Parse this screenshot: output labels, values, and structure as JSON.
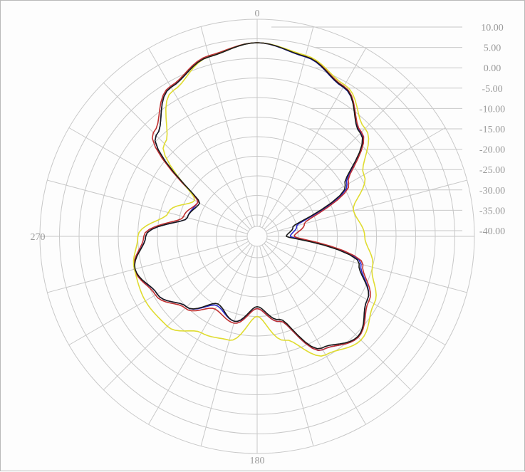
{
  "chart_data": {
    "type": "polar-line",
    "title": "",
    "angle_labels": [
      "0",
      "270",
      "180"
    ],
    "angle_label_degrees": [
      0,
      270,
      180
    ],
    "radial_ticks": [
      "10.00",
      "5.00",
      "0.00",
      "-5.00",
      "-10.00",
      "-15.00",
      "-20.00",
      "-25.00",
      "-30.00",
      "-35.00",
      "-40.00"
    ],
    "radial_range_db": [
      -40,
      10
    ],
    "angular_spokes_every_deg": 15,
    "grid": true,
    "legend": "none",
    "series": [
      {
        "color": "#2a2ad0",
        "points": [
          [
            0,
            4.0
          ],
          [
            15,
            2.0
          ],
          [
            30,
            -1.5
          ],
          [
            45,
            -8.0
          ],
          [
            60,
            -19.0
          ],
          [
            75,
            -35.0
          ],
          [
            90,
            -37.0
          ],
          [
            105,
            -18.0
          ],
          [
            120,
            -13.0
          ],
          [
            135,
            -9.0
          ],
          [
            150,
            -12.0
          ],
          [
            165,
            -23.0
          ],
          [
            180,
            -27.0
          ],
          [
            195,
            -23.0
          ],
          [
            210,
            -25.0
          ],
          [
            225,
            -20.0
          ],
          [
            240,
            -16.0
          ],
          [
            255,
            -13.0
          ],
          [
            270,
            -17.0
          ],
          [
            285,
            -27.0
          ],
          [
            300,
            -28.0
          ],
          [
            315,
            -9.0
          ],
          [
            330,
            -1.5
          ],
          [
            345,
            2.0
          ],
          [
            360,
            4.0
          ]
        ]
      },
      {
        "color": "#c03030",
        "points": [
          [
            0,
            4.0
          ],
          [
            15,
            2.2
          ],
          [
            30,
            -1.2
          ],
          [
            45,
            -7.8
          ],
          [
            60,
            -18.5
          ],
          [
            75,
            -33.0
          ],
          [
            90,
            -36.0
          ],
          [
            105,
            -17.5
          ],
          [
            120,
            -12.5
          ],
          [
            135,
            -9.0
          ],
          [
            150,
            -12.0
          ],
          [
            165,
            -23.0
          ],
          [
            180,
            -27.0
          ],
          [
            195,
            -22.5
          ],
          [
            210,
            -24.0
          ],
          [
            225,
            -19.5
          ],
          [
            240,
            -15.5
          ],
          [
            255,
            -13.0
          ],
          [
            270,
            -16.5
          ],
          [
            285,
            -26.0
          ],
          [
            300,
            -28.0
          ],
          [
            315,
            -8.0
          ],
          [
            330,
            -1.2
          ],
          [
            345,
            2.3
          ],
          [
            360,
            4.0
          ]
        ]
      },
      {
        "color": "#e0dc30",
        "points": [
          [
            0,
            4.0
          ],
          [
            15,
            2.4
          ],
          [
            30,
            -0.8
          ],
          [
            45,
            -6.5
          ],
          [
            60,
            -14.0
          ],
          [
            75,
            -20.0
          ],
          [
            90,
            -18.0
          ],
          [
            105,
            -15.0
          ],
          [
            120,
            -11.0
          ],
          [
            135,
            -8.0
          ],
          [
            150,
            -10.5
          ],
          [
            165,
            -18.0
          ],
          [
            180,
            -25.0
          ],
          [
            195,
            -18.0
          ],
          [
            210,
            -17.0
          ],
          [
            225,
            -13.0
          ],
          [
            240,
            -12.5
          ],
          [
            255,
            -13.0
          ],
          [
            270,
            -15.0
          ],
          [
            285,
            -22.0
          ],
          [
            300,
            -27.0
          ],
          [
            315,
            -12.0
          ],
          [
            330,
            -2.5
          ],
          [
            345,
            2.0
          ],
          [
            360,
            4.0
          ]
        ]
      },
      {
        "color": "#1a1a1a",
        "points": [
          [
            0,
            4.0
          ],
          [
            15,
            2.1
          ],
          [
            30,
            -1.4
          ],
          [
            45,
            -8.2
          ],
          [
            60,
            -19.5
          ],
          [
            75,
            -36.0
          ],
          [
            90,
            -38.0
          ],
          [
            105,
            -18.5
          ],
          [
            120,
            -13.0
          ],
          [
            135,
            -9.2
          ],
          [
            150,
            -12.5
          ],
          [
            165,
            -23.5
          ],
          [
            180,
            -27.5
          ],
          [
            195,
            -23.0
          ],
          [
            210,
            -25.5
          ],
          [
            225,
            -20.0
          ],
          [
            240,
            -16.0
          ],
          [
            255,
            -13.2
          ],
          [
            270,
            -17.0
          ],
          [
            285,
            -27.0
          ],
          [
            300,
            -28.5
          ],
          [
            315,
            -9.0
          ],
          [
            330,
            -1.5
          ],
          [
            345,
            2.0
          ],
          [
            360,
            4.0
          ]
        ]
      }
    ]
  }
}
